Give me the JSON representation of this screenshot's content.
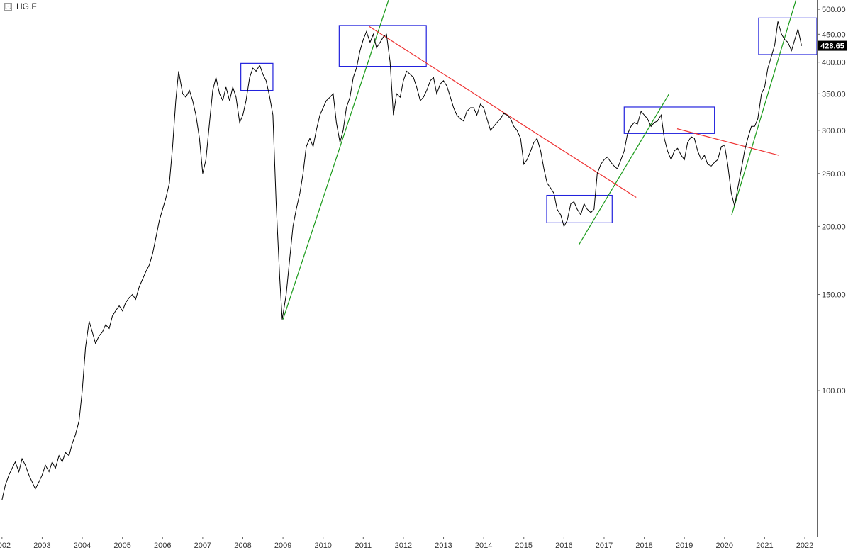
{
  "header": {
    "collapse_icon": "[-]",
    "symbol": "HG.F"
  },
  "chart_data": {
    "type": "line",
    "scale": "log",
    "ylim": [
      54,
      520
    ],
    "xlim": [
      2001.95,
      2022.3
    ],
    "yticks": [
      100,
      150,
      200,
      250,
      300,
      350,
      400,
      450,
      500
    ],
    "ytick_labels": [
      "100.00",
      "150.00",
      "200.00",
      "250.00",
      "300.00",
      "350.00",
      "400.00",
      "450.00",
      "500.00"
    ],
    "xticks": [
      2002,
      2003,
      2004,
      2005,
      2006,
      2007,
      2008,
      2009,
      2010,
      2011,
      2012,
      2013,
      2014,
      2015,
      2016,
      2017,
      2018,
      2019,
      2020,
      2021,
      2022
    ],
    "xtick_labels": [
      "2002",
      "2003",
      "2004",
      "2005",
      "2006",
      "2007",
      "2008",
      "2009",
      "2010",
      "2011",
      "2012",
      "2013",
      "2014",
      "2015",
      "2016",
      "2017",
      "2018",
      "2019",
      "2020",
      "2021",
      "2022"
    ],
    "last_price": 428.65,
    "last_price_label": "428.65",
    "grid": false,
    "legend": "none",
    "colors": {
      "price": "#000000",
      "uptrend": "#1a9a1a",
      "downtrend": "#ee3333",
      "box": "#2222dd",
      "label_bg": "#000000"
    },
    "series": [
      {
        "values": [
          [
            2002.0,
            63
          ],
          [
            2002.08,
            67
          ],
          [
            2002.17,
            70
          ],
          [
            2002.25,
            72
          ],
          [
            2002.33,
            74
          ],
          [
            2002.42,
            71
          ],
          [
            2002.5,
            75
          ],
          [
            2002.58,
            73
          ],
          [
            2002.67,
            70
          ],
          [
            2002.75,
            68
          ],
          [
            2002.83,
            66
          ],
          [
            2002.92,
            68
          ],
          [
            2003.0,
            70
          ],
          [
            2003.08,
            73
          ],
          [
            2003.17,
            71
          ],
          [
            2003.25,
            74
          ],
          [
            2003.33,
            72
          ],
          [
            2003.42,
            76
          ],
          [
            2003.5,
            74
          ],
          [
            2003.58,
            77
          ],
          [
            2003.67,
            76
          ],
          [
            2003.75,
            80
          ],
          [
            2003.83,
            83
          ],
          [
            2003.92,
            88
          ],
          [
            2004.0,
            100
          ],
          [
            2004.08,
            120
          ],
          [
            2004.17,
            134
          ],
          [
            2004.25,
            128
          ],
          [
            2004.33,
            122
          ],
          [
            2004.42,
            126
          ],
          [
            2004.5,
            128
          ],
          [
            2004.58,
            132
          ],
          [
            2004.67,
            130
          ],
          [
            2004.75,
            137
          ],
          [
            2004.83,
            140
          ],
          [
            2004.92,
            143
          ],
          [
            2005.0,
            140
          ],
          [
            2005.08,
            145
          ],
          [
            2005.17,
            148
          ],
          [
            2005.25,
            150
          ],
          [
            2005.33,
            147
          ],
          [
            2005.42,
            155
          ],
          [
            2005.5,
            160
          ],
          [
            2005.58,
            165
          ],
          [
            2005.67,
            170
          ],
          [
            2005.75,
            178
          ],
          [
            2005.83,
            190
          ],
          [
            2005.92,
            205
          ],
          [
            2006.0,
            215
          ],
          [
            2006.08,
            225
          ],
          [
            2006.17,
            240
          ],
          [
            2006.25,
            280
          ],
          [
            2006.33,
            340
          ],
          [
            2006.4,
            385
          ],
          [
            2006.5,
            350
          ],
          [
            2006.58,
            345
          ],
          [
            2006.67,
            355
          ],
          [
            2006.75,
            340
          ],
          [
            2006.83,
            320
          ],
          [
            2006.92,
            290
          ],
          [
            2007.0,
            250
          ],
          [
            2007.08,
            265
          ],
          [
            2007.17,
            310
          ],
          [
            2007.25,
            355
          ],
          [
            2007.33,
            375
          ],
          [
            2007.42,
            350
          ],
          [
            2007.5,
            340
          ],
          [
            2007.58,
            360
          ],
          [
            2007.67,
            340
          ],
          [
            2007.75,
            360
          ],
          [
            2007.83,
            345
          ],
          [
            2007.92,
            310
          ],
          [
            2008.0,
            320
          ],
          [
            2008.08,
            340
          ],
          [
            2008.17,
            375
          ],
          [
            2008.25,
            390
          ],
          [
            2008.33,
            385
          ],
          [
            2008.42,
            395
          ],
          [
            2008.5,
            380
          ],
          [
            2008.58,
            370
          ],
          [
            2008.67,
            345
          ],
          [
            2008.75,
            320
          ],
          [
            2008.83,
            220
          ],
          [
            2008.92,
            160
          ],
          [
            2008.98,
            135
          ],
          [
            2009.08,
            150
          ],
          [
            2009.17,
            175
          ],
          [
            2009.25,
            200
          ],
          [
            2009.33,
            215
          ],
          [
            2009.42,
            230
          ],
          [
            2009.5,
            250
          ],
          [
            2009.58,
            280
          ],
          [
            2009.67,
            290
          ],
          [
            2009.75,
            280
          ],
          [
            2009.83,
            300
          ],
          [
            2009.92,
            320
          ],
          [
            2010.0,
            330
          ],
          [
            2010.08,
            340
          ],
          [
            2010.17,
            345
          ],
          [
            2010.25,
            350
          ],
          [
            2010.33,
            310
          ],
          [
            2010.42,
            285
          ],
          [
            2010.5,
            300
          ],
          [
            2010.58,
            330
          ],
          [
            2010.67,
            345
          ],
          [
            2010.75,
            375
          ],
          [
            2010.83,
            390
          ],
          [
            2010.92,
            420
          ],
          [
            2011.0,
            440
          ],
          [
            2011.08,
            455
          ],
          [
            2011.17,
            435
          ],
          [
            2011.25,
            450
          ],
          [
            2011.33,
            425
          ],
          [
            2011.42,
            435
          ],
          [
            2011.5,
            445
          ],
          [
            2011.58,
            450
          ],
          [
            2011.67,
            400
          ],
          [
            2011.75,
            320
          ],
          [
            2011.83,
            350
          ],
          [
            2011.92,
            345
          ],
          [
            2012.0,
            370
          ],
          [
            2012.08,
            385
          ],
          [
            2012.17,
            380
          ],
          [
            2012.25,
            375
          ],
          [
            2012.33,
            360
          ],
          [
            2012.42,
            340
          ],
          [
            2012.5,
            345
          ],
          [
            2012.58,
            355
          ],
          [
            2012.67,
            370
          ],
          [
            2012.75,
            375
          ],
          [
            2012.83,
            350
          ],
          [
            2012.92,
            365
          ],
          [
            2013.0,
            370
          ],
          [
            2013.08,
            362
          ],
          [
            2013.17,
            345
          ],
          [
            2013.25,
            330
          ],
          [
            2013.33,
            320
          ],
          [
            2013.42,
            315
          ],
          [
            2013.5,
            312
          ],
          [
            2013.58,
            325
          ],
          [
            2013.67,
            330
          ],
          [
            2013.75,
            330
          ],
          [
            2013.83,
            320
          ],
          [
            2013.92,
            335
          ],
          [
            2014.0,
            330
          ],
          [
            2014.08,
            315
          ],
          [
            2014.17,
            300
          ],
          [
            2014.25,
            305
          ],
          [
            2014.33,
            310
          ],
          [
            2014.42,
            315
          ],
          [
            2014.5,
            322
          ],
          [
            2014.58,
            320
          ],
          [
            2014.67,
            315
          ],
          [
            2014.75,
            305
          ],
          [
            2014.83,
            300
          ],
          [
            2014.92,
            290
          ],
          [
            2015.0,
            260
          ],
          [
            2015.08,
            265
          ],
          [
            2015.17,
            275
          ],
          [
            2015.25,
            285
          ],
          [
            2015.33,
            290
          ],
          [
            2015.42,
            275
          ],
          [
            2015.5,
            255
          ],
          [
            2015.58,
            240
          ],
          [
            2015.67,
            235
          ],
          [
            2015.75,
            230
          ],
          [
            2015.83,
            215
          ],
          [
            2015.92,
            210
          ],
          [
            2016.0,
            200
          ],
          [
            2016.08,
            205
          ],
          [
            2016.17,
            220
          ],
          [
            2016.25,
            222
          ],
          [
            2016.33,
            215
          ],
          [
            2016.42,
            210
          ],
          [
            2016.5,
            220
          ],
          [
            2016.58,
            215
          ],
          [
            2016.67,
            212
          ],
          [
            2016.75,
            215
          ],
          [
            2016.83,
            250
          ],
          [
            2016.92,
            260
          ],
          [
            2017.0,
            265
          ],
          [
            2017.08,
            268
          ],
          [
            2017.17,
            262
          ],
          [
            2017.25,
            258
          ],
          [
            2017.33,
            255
          ],
          [
            2017.42,
            265
          ],
          [
            2017.5,
            275
          ],
          [
            2017.58,
            295
          ],
          [
            2017.67,
            305
          ],
          [
            2017.75,
            310
          ],
          [
            2017.83,
            308
          ],
          [
            2017.92,
            325
          ],
          [
            2018.0,
            320
          ],
          [
            2018.08,
            315
          ],
          [
            2018.17,
            305
          ],
          [
            2018.25,
            310
          ],
          [
            2018.33,
            312
          ],
          [
            2018.42,
            320
          ],
          [
            2018.5,
            290
          ],
          [
            2018.58,
            275
          ],
          [
            2018.67,
            265
          ],
          [
            2018.75,
            275
          ],
          [
            2018.83,
            278
          ],
          [
            2018.92,
            270
          ],
          [
            2019.0,
            265
          ],
          [
            2019.08,
            285
          ],
          [
            2019.17,
            292
          ],
          [
            2019.25,
            290
          ],
          [
            2019.33,
            275
          ],
          [
            2019.42,
            265
          ],
          [
            2019.5,
            270
          ],
          [
            2019.58,
            260
          ],
          [
            2019.67,
            258
          ],
          [
            2019.75,
            262
          ],
          [
            2019.83,
            265
          ],
          [
            2019.92,
            280
          ],
          [
            2020.0,
            282
          ],
          [
            2020.08,
            260
          ],
          [
            2020.17,
            230
          ],
          [
            2020.25,
            218
          ],
          [
            2020.33,
            235
          ],
          [
            2020.42,
            255
          ],
          [
            2020.5,
            275
          ],
          [
            2020.58,
            290
          ],
          [
            2020.67,
            305
          ],
          [
            2020.75,
            305
          ],
          [
            2020.83,
            315
          ],
          [
            2020.92,
            350
          ],
          [
            2021.0,
            360
          ],
          [
            2021.08,
            390
          ],
          [
            2021.17,
            410
          ],
          [
            2021.25,
            430
          ],
          [
            2021.33,
            475
          ],
          [
            2021.42,
            450
          ],
          [
            2021.5,
            440
          ],
          [
            2021.58,
            435
          ],
          [
            2021.67,
            420
          ],
          [
            2021.75,
            440
          ],
          [
            2021.83,
            460
          ],
          [
            2021.92,
            428.65
          ]
        ]
      }
    ],
    "trendlines": [
      {
        "color": "uptrend",
        "points": [
          [
            2009.0,
            135
          ],
          [
            2011.63,
            520
          ]
        ]
      },
      {
        "color": "uptrend",
        "points": [
          [
            2016.37,
            185
          ],
          [
            2018.62,
            350
          ]
        ]
      },
      {
        "color": "uptrend",
        "points": [
          [
            2020.18,
            210
          ],
          [
            2021.78,
            520
          ]
        ]
      },
      {
        "color": "downtrend",
        "points": [
          [
            2011.15,
            465
          ],
          [
            2017.8,
            226
          ]
        ]
      },
      {
        "color": "downtrend",
        "points": [
          [
            2018.82,
            302
          ],
          [
            2021.35,
            270
          ]
        ]
      }
    ],
    "boxes": [
      {
        "x": [
          2007.95,
          2008.75
        ],
        "y": [
          355,
          398
        ]
      },
      {
        "x": [
          2010.4,
          2012.57
        ],
        "y": [
          393,
          467
        ]
      },
      {
        "x": [
          2015.57,
          2017.2
        ],
        "y": [
          203,
          228
        ]
      },
      {
        "x": [
          2017.5,
          2019.75
        ],
        "y": [
          296,
          331
        ]
      },
      {
        "x": [
          2020.85,
          2022.3
        ],
        "y": [
          413,
          482
        ]
      }
    ]
  }
}
